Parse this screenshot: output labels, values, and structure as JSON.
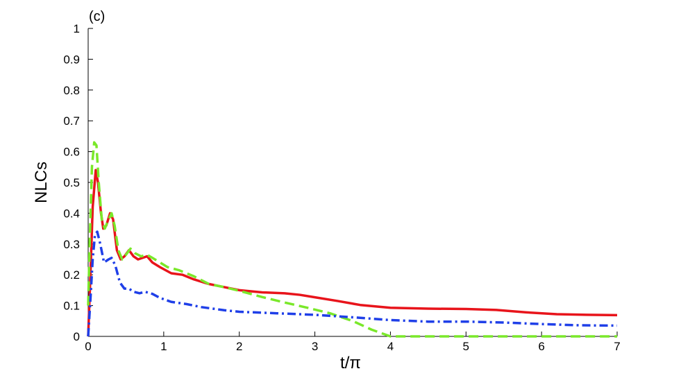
{
  "chart_data": {
    "type": "line",
    "panel_label": "(c)",
    "xlabel": "t/π",
    "ylabel": "NLCs",
    "xlim": [
      0,
      7
    ],
    "ylim": [
      0,
      1
    ],
    "x_ticks": [
      0,
      1,
      2,
      3,
      4,
      5,
      6,
      7
    ],
    "y_ticks": [
      0,
      0.1,
      0.2,
      0.3,
      0.4,
      0.5,
      0.6,
      0.7,
      0.8,
      0.9,
      1
    ],
    "x_tick_labels": [
      "0",
      "1",
      "2",
      "3",
      "4",
      "5",
      "6",
      "7"
    ],
    "y_tick_labels": [
      "0",
      "0.1",
      "0.2",
      "0.3",
      "0.4",
      "0.5",
      "0.6",
      "0.7",
      "0.8",
      "0.9",
      "1"
    ],
    "grid": false,
    "series": [
      {
        "style": "solid",
        "color": "#e8141b",
        "points": [
          [
            0,
            0.0
          ],
          [
            0.03,
            0.2
          ],
          [
            0.06,
            0.42
          ],
          [
            0.1,
            0.54
          ],
          [
            0.13,
            0.5
          ],
          [
            0.17,
            0.4
          ],
          [
            0.2,
            0.35
          ],
          [
            0.24,
            0.36
          ],
          [
            0.29,
            0.4
          ],
          [
            0.33,
            0.38
          ],
          [
            0.38,
            0.28
          ],
          [
            0.43,
            0.25
          ],
          [
            0.48,
            0.26
          ],
          [
            0.54,
            0.28
          ],
          [
            0.6,
            0.26
          ],
          [
            0.66,
            0.25
          ],
          [
            0.72,
            0.255
          ],
          [
            0.78,
            0.26
          ],
          [
            0.85,
            0.24
          ],
          [
            0.95,
            0.225
          ],
          [
            1.1,
            0.205
          ],
          [
            1.25,
            0.2
          ],
          [
            1.4,
            0.185
          ],
          [
            1.6,
            0.17
          ],
          [
            1.8,
            0.16
          ],
          [
            2.0,
            0.15
          ],
          [
            2.3,
            0.143
          ],
          [
            2.6,
            0.14
          ],
          [
            2.8,
            0.135
          ],
          [
            3.0,
            0.127
          ],
          [
            3.3,
            0.115
          ],
          [
            3.6,
            0.102
          ],
          [
            4.0,
            0.093
          ],
          [
            4.5,
            0.09
          ],
          [
            5.0,
            0.089
          ],
          [
            5.4,
            0.086
          ],
          [
            5.8,
            0.078
          ],
          [
            6.2,
            0.072
          ],
          [
            6.6,
            0.07
          ],
          [
            7.0,
            0.069
          ]
        ]
      },
      {
        "style": "dashed",
        "color": "#7ae82a",
        "points": [
          [
            0,
            0.1
          ],
          [
            0.02,
            0.3
          ],
          [
            0.05,
            0.55
          ],
          [
            0.08,
            0.63
          ],
          [
            0.11,
            0.62
          ],
          [
            0.14,
            0.5
          ],
          [
            0.18,
            0.38
          ],
          [
            0.22,
            0.35
          ],
          [
            0.27,
            0.38
          ],
          [
            0.31,
            0.4
          ],
          [
            0.35,
            0.36
          ],
          [
            0.4,
            0.28
          ],
          [
            0.45,
            0.25
          ],
          [
            0.5,
            0.265
          ],
          [
            0.56,
            0.285
          ],
          [
            0.62,
            0.27
          ],
          [
            0.7,
            0.26
          ],
          [
            0.78,
            0.265
          ],
          [
            0.85,
            0.255
          ],
          [
            0.95,
            0.24
          ],
          [
            1.05,
            0.225
          ],
          [
            1.2,
            0.215
          ],
          [
            1.4,
            0.195
          ],
          [
            1.6,
            0.17
          ],
          [
            1.8,
            0.16
          ],
          [
            2.0,
            0.148
          ],
          [
            2.3,
            0.128
          ],
          [
            2.6,
            0.11
          ],
          [
            2.9,
            0.093
          ],
          [
            3.2,
            0.075
          ],
          [
            3.5,
            0.05
          ],
          [
            3.75,
            0.022
          ],
          [
            4.0,
            0.0
          ],
          [
            5.0,
            0.0
          ],
          [
            6.0,
            0.0
          ],
          [
            7.0,
            0.0
          ]
        ]
      },
      {
        "style": "dashdot",
        "color": "#1f3fe8",
        "points": [
          [
            0,
            0.0
          ],
          [
            0.03,
            0.12
          ],
          [
            0.06,
            0.25
          ],
          [
            0.09,
            0.33
          ],
          [
            0.12,
            0.34
          ],
          [
            0.16,
            0.3
          ],
          [
            0.21,
            0.24
          ],
          [
            0.27,
            0.25
          ],
          [
            0.31,
            0.255
          ],
          [
            0.36,
            0.23
          ],
          [
            0.42,
            0.175
          ],
          [
            0.48,
            0.155
          ],
          [
            0.54,
            0.155
          ],
          [
            0.6,
            0.145
          ],
          [
            0.68,
            0.14
          ],
          [
            0.75,
            0.145
          ],
          [
            0.85,
            0.138
          ],
          [
            0.95,
            0.125
          ],
          [
            1.1,
            0.112
          ],
          [
            1.3,
            0.105
          ],
          [
            1.5,
            0.095
          ],
          [
            1.8,
            0.085
          ],
          [
            2.0,
            0.08
          ],
          [
            2.5,
            0.075
          ],
          [
            3.0,
            0.07
          ],
          [
            3.5,
            0.062
          ],
          [
            4.0,
            0.053
          ],
          [
            4.5,
            0.048
          ],
          [
            5.0,
            0.048
          ],
          [
            5.5,
            0.045
          ],
          [
            6.0,
            0.04
          ],
          [
            6.5,
            0.036
          ],
          [
            7.0,
            0.035
          ]
        ]
      }
    ]
  }
}
